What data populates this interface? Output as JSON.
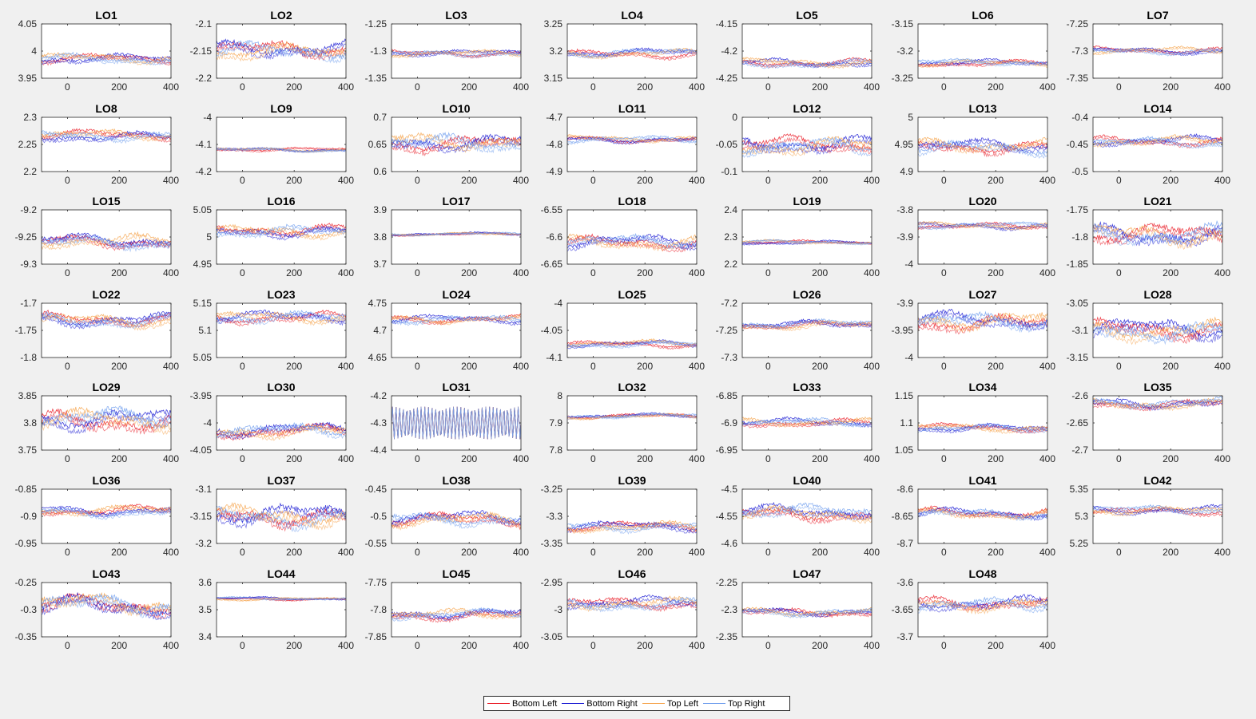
{
  "legend": {
    "placement": "bottom-center",
    "entries": [
      {
        "label": "Bottom Left",
        "color": "#e8141f"
      },
      {
        "label": "Bottom Right",
        "color": "#1414d2"
      },
      {
        "label": "Top Left",
        "color": "#f5a34a"
      },
      {
        "label": "Top Right",
        "color": "#6c9bed"
      }
    ]
  },
  "chart_data": {
    "type": "line",
    "layout": "small-multiples 7x7 (48 panels)",
    "series_names": [
      "Bottom Left",
      "Bottom Right",
      "Top Left",
      "Top Right"
    ],
    "xlim": [
      -100,
      400
    ],
    "xticks": [
      0,
      200,
      400
    ],
    "xtick_labels": [
      "0",
      "200",
      "400"
    ],
    "grid": false,
    "panels": [
      {
        "title": "LO1",
        "ylim": [
          3.95,
          4.05
        ],
        "ytick_labels": [
          "3.95",
          "4",
          "4.05"
        ],
        "base": 3.985,
        "amp": 0.006
      },
      {
        "title": "LO2",
        "ylim": [
          -2.2,
          -2.1
        ],
        "ytick_labels": [
          "-2.2",
          "-2.15",
          "-2.1"
        ],
        "base": -2.15,
        "amp": 0.01
      },
      {
        "title": "LO3",
        "ylim": [
          -1.35,
          -1.25
        ],
        "ytick_labels": [
          "-1.35",
          "-1.3",
          "-1.25"
        ],
        "base": -1.305,
        "amp": 0.004
      },
      {
        "title": "LO4",
        "ylim": [
          3.15,
          3.25
        ],
        "ytick_labels": [
          "3.15",
          "3.2",
          "3.25"
        ],
        "base": 3.195,
        "amp": 0.005
      },
      {
        "title": "LO5",
        "ylim": [
          -4.25,
          -4.15
        ],
        "ytick_labels": [
          "-4.25",
          "-4.2",
          "-4.15"
        ],
        "base": -4.222,
        "amp": 0.005
      },
      {
        "title": "LO6",
        "ylim": [
          -3.25,
          -3.15
        ],
        "ytick_labels": [
          "-3.25",
          "-3.2",
          "-3.15"
        ],
        "base": -3.222,
        "amp": 0.004
      },
      {
        "title": "LO7",
        "ylim": [
          -7.35,
          -7.25
        ],
        "ytick_labels": [
          "-7.35",
          "-7.3",
          "-7.25"
        ],
        "base": -7.3,
        "amp": 0.004
      },
      {
        "title": "LO8",
        "ylim": [
          2.2,
          2.3
        ],
        "ytick_labels": [
          "2.2",
          "2.25",
          "2.3"
        ],
        "base": 2.265,
        "amp": 0.006
      },
      {
        "title": "LO9",
        "ylim": [
          -4.2,
          -4
        ],
        "ytick_labels": [
          "-4.2",
          "-4.1",
          "-4"
        ],
        "base": -4.12,
        "amp": 0.005
      },
      {
        "title": "LO10",
        "ylim": [
          0.6,
          0.7
        ],
        "ytick_labels": [
          "0.6",
          "0.65",
          "0.7"
        ],
        "base": 0.652,
        "amp": 0.01
      },
      {
        "title": "LO11",
        "ylim": [
          -4.9,
          -4.7
        ],
        "ytick_labels": [
          "-4.9",
          "-4.8",
          "-4.7"
        ],
        "base": -4.78,
        "amp": 0.008
      },
      {
        "title": "LO12",
        "ylim": [
          -0.1,
          0
        ],
        "ytick_labels": [
          "-0.1",
          "-0.05",
          "0"
        ],
        "base": -0.052,
        "amp": 0.01
      },
      {
        "title": "LO13",
        "ylim": [
          4.9,
          5
        ],
        "ytick_labels": [
          "4.9",
          "4.95",
          "5"
        ],
        "base": 4.945,
        "amp": 0.008
      },
      {
        "title": "LO14",
        "ylim": [
          -0.5,
          -0.4
        ],
        "ytick_labels": [
          "-0.5",
          "-0.45",
          "-0.4"
        ],
        "base": -0.445,
        "amp": 0.006
      },
      {
        "title": "LO15",
        "ylim": [
          -9.3,
          -9.2
        ],
        "ytick_labels": [
          "-9.3",
          "-9.25",
          "-9.2"
        ],
        "base": -9.26,
        "amp": 0.008
      },
      {
        "title": "LO16",
        "ylim": [
          4.95,
          5.05
        ],
        "ytick_labels": [
          "4.95",
          "5",
          "5.05"
        ],
        "base": 5.01,
        "amp": 0.007
      },
      {
        "title": "LO17",
        "ylim": [
          3.7,
          3.9
        ],
        "ytick_labels": [
          "3.7",
          "3.8",
          "3.9"
        ],
        "base": 3.81,
        "amp": 0.004
      },
      {
        "title": "LO18",
        "ylim": [
          -6.65,
          -6.55
        ],
        "ytick_labels": [
          "-6.65",
          "-6.6",
          "-6.55"
        ],
        "base": -6.612,
        "amp": 0.008
      },
      {
        "title": "LO19",
        "ylim": [
          2.2,
          2.4
        ],
        "ytick_labels": [
          "2.2",
          "2.3",
          "2.4"
        ],
        "base": 2.28,
        "amp": 0.005
      },
      {
        "title": "LO20",
        "ylim": [
          -4,
          -3.8
        ],
        "ytick_labels": [
          "-4",
          "-3.9",
          "-3.8"
        ],
        "base": -3.86,
        "amp": 0.008
      },
      {
        "title": "LO21",
        "ylim": [
          -1.85,
          -1.75
        ],
        "ytick_labels": [
          "-1.85",
          "-1.8",
          "-1.75"
        ],
        "base": -1.795,
        "amp": 0.012
      },
      {
        "title": "LO22",
        "ylim": [
          -1.8,
          -1.7
        ],
        "ytick_labels": [
          "-1.8",
          "-1.75",
          "-1.7"
        ],
        "base": -1.73,
        "amp": 0.008
      },
      {
        "title": "LO23",
        "ylim": [
          5.05,
          5.15
        ],
        "ytick_labels": [
          "5.05",
          "5.1",
          "5.15"
        ],
        "base": 5.125,
        "amp": 0.007
      },
      {
        "title": "LO24",
        "ylim": [
          4.65,
          4.75
        ],
        "ytick_labels": [
          "4.65",
          "4.7",
          "4.75"
        ],
        "base": 4.72,
        "amp": 0.005
      },
      {
        "title": "LO25",
        "ylim": [
          -4.1,
          -4
        ],
        "ytick_labels": [
          "-4.1",
          "-4.05",
          "-4"
        ],
        "base": -4.075,
        "amp": 0.004
      },
      {
        "title": "LO26",
        "ylim": [
          -7.3,
          -7.2
        ],
        "ytick_labels": [
          "-7.3",
          "-7.25",
          "-7.2"
        ],
        "base": -7.24,
        "amp": 0.005
      },
      {
        "title": "LO27",
        "ylim": [
          -4,
          -3.9
        ],
        "ytick_labels": [
          "-4",
          "-3.95",
          "-3.9"
        ],
        "base": -3.935,
        "amp": 0.01
      },
      {
        "title": "LO28",
        "ylim": [
          -3.15,
          -3.05
        ],
        "ytick_labels": [
          "-3.15",
          "-3.1",
          "-3.05"
        ],
        "base": -3.1,
        "amp": 0.012
      },
      {
        "title": "LO29",
        "ylim": [
          3.75,
          3.85
        ],
        "ytick_labels": [
          "3.75",
          "3.8",
          "3.85"
        ],
        "base": 3.805,
        "amp": 0.012
      },
      {
        "title": "LO30",
        "ylim": [
          -4.05,
          -3.95
        ],
        "ytick_labels": [
          "-4.05",
          "-4",
          "-3.95"
        ],
        "base": -4.015,
        "amp": 0.008
      },
      {
        "title": "LO31",
        "ylim": [
          -4.4,
          -4.2
        ],
        "ytick_labels": [
          "-4.4",
          "-4.3",
          "-4.2"
        ],
        "base": -4.3,
        "amp": 0.06,
        "oscillation": true
      },
      {
        "title": "LO32",
        "ylim": [
          7.8,
          8
        ],
        "ytick_labels": [
          "7.8",
          "7.9",
          "8"
        ],
        "base": 7.925,
        "amp": 0.006
      },
      {
        "title": "LO33",
        "ylim": [
          -6.95,
          -6.85
        ],
        "ytick_labels": [
          "-6.95",
          "-6.9",
          "-6.85"
        ],
        "base": -6.9,
        "amp": 0.005
      },
      {
        "title": "LO34",
        "ylim": [
          1.05,
          1.15
        ],
        "ytick_labels": [
          "1.05",
          "1.1",
          "1.15"
        ],
        "base": 1.09,
        "amp": 0.005
      },
      {
        "title": "LO35",
        "ylim": [
          -2.7,
          -2.6
        ],
        "ytick_labels": [
          "-2.7",
          "-2.65",
          "-2.6"
        ],
        "base": -2.615,
        "amp": 0.006
      },
      {
        "title": "LO36",
        "ylim": [
          -0.95,
          -0.85
        ],
        "ytick_labels": [
          "-0.95",
          "-0.9",
          "-0.85"
        ],
        "base": -0.892,
        "amp": 0.006
      },
      {
        "title": "LO37",
        "ylim": [
          -3.2,
          -3.1
        ],
        "ytick_labels": [
          "-3.2",
          "-3.15",
          "-3.1"
        ],
        "base": -3.15,
        "amp": 0.012
      },
      {
        "title": "LO38",
        "ylim": [
          -0.55,
          -0.45
        ],
        "ytick_labels": [
          "-0.55",
          "-0.5",
          "-0.45"
        ],
        "base": -0.505,
        "amp": 0.008
      },
      {
        "title": "LO39",
        "ylim": [
          -3.35,
          -3.25
        ],
        "ytick_labels": [
          "-3.35",
          "-3.3",
          "-3.25"
        ],
        "base": -3.32,
        "amp": 0.006
      },
      {
        "title": "LO40",
        "ylim": [
          -4.6,
          -4.5
        ],
        "ytick_labels": [
          "-4.6",
          "-4.55",
          "-4.5"
        ],
        "base": -4.545,
        "amp": 0.008
      },
      {
        "title": "LO41",
        "ylim": [
          -8.7,
          -8.6
        ],
        "ytick_labels": [
          "-8.7",
          "-8.65",
          "-8.6"
        ],
        "base": -8.645,
        "amp": 0.006
      },
      {
        "title": "LO42",
        "ylim": [
          5.25,
          5.35
        ],
        "ytick_labels": [
          "5.25",
          "5.3",
          "5.35"
        ],
        "base": 5.31,
        "amp": 0.005
      },
      {
        "title": "LO43",
        "ylim": [
          -0.35,
          -0.25
        ],
        "ytick_labels": [
          "-0.35",
          "-0.3",
          "-0.25"
        ],
        "base": -0.295,
        "amp": 0.012
      },
      {
        "title": "LO44",
        "ylim": [
          3.4,
          3.6
        ],
        "ytick_labels": [
          "3.4",
          "3.5",
          "3.6"
        ],
        "base": 3.54,
        "amp": 0.004
      },
      {
        "title": "LO45",
        "ylim": [
          -7.85,
          -7.75
        ],
        "ytick_labels": [
          "-7.85",
          "-7.8",
          "-7.75"
        ],
        "base": -7.81,
        "amp": 0.006
      },
      {
        "title": "LO46",
        "ylim": [
          -3.05,
          -2.95
        ],
        "ytick_labels": [
          "-3.05",
          "-3",
          "-2.95"
        ],
        "base": -2.99,
        "amp": 0.007
      },
      {
        "title": "LO47",
        "ylim": [
          -2.35,
          -2.25
        ],
        "ytick_labels": [
          "-2.35",
          "-2.3",
          "-2.25"
        ],
        "base": -2.305,
        "amp": 0.005
      },
      {
        "title": "LO48",
        "ylim": [
          -3.7,
          -3.6
        ],
        "ytick_labels": [
          "-3.7",
          "-3.65",
          "-3.6"
        ],
        "base": -3.64,
        "amp": 0.008
      }
    ]
  }
}
